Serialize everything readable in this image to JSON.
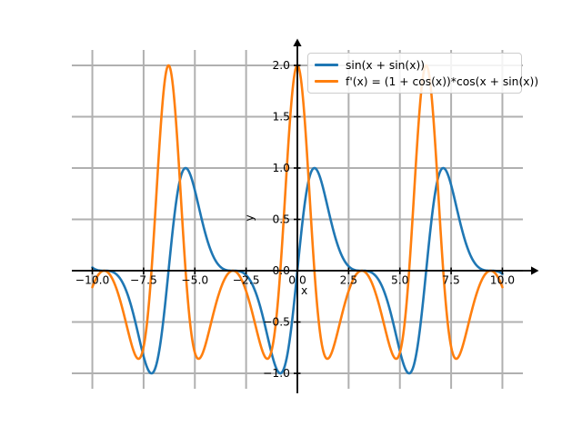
{
  "figure": {
    "background": "#ffffff"
  },
  "chart_data": {
    "type": "line",
    "title": "",
    "xlabel": "x",
    "ylabel": "y",
    "xlim": [
      -11,
      11
    ],
    "ylim": [
      -1.15,
      2.15
    ],
    "x_range": [
      -10,
      10
    ],
    "num_points": 600,
    "grid": true,
    "grid_color": "#b0b0b0",
    "axis_color": "#000000",
    "tick_label_color": "#000000",
    "x_ticks": [
      {
        "v": -10,
        "label": "−10.0"
      },
      {
        "v": -7.5,
        "label": "−7.5"
      },
      {
        "v": -5,
        "label": "−5.0"
      },
      {
        "v": -2.5,
        "label": "−2.5"
      },
      {
        "v": 0,
        "label": "0.0"
      },
      {
        "v": 2.5,
        "label": "2.5"
      },
      {
        "v": 5,
        "label": "5.0"
      },
      {
        "v": 7.5,
        "label": "7.5"
      },
      {
        "v": 10,
        "label": "10.0"
      }
    ],
    "y_ticks": [
      {
        "v": -1,
        "label": "−1.0"
      },
      {
        "v": -0.5,
        "label": "−0.5"
      },
      {
        "v": 0,
        "label": "0.0"
      },
      {
        "v": 0.5,
        "label": "0.5"
      },
      {
        "v": 1,
        "label": "1.0"
      },
      {
        "v": 1.5,
        "label": "1.5"
      },
      {
        "v": 2,
        "label": "2.0"
      }
    ],
    "legend": {
      "position": "upper right",
      "border_color": "#cccccc",
      "background": "rgba(255,255,255,0.85)"
    },
    "series": [
      {
        "label": "sin(x + sin(x))",
        "color": "#1f77b4",
        "formula_js": "Math.sin(x + Math.sin(x))"
      },
      {
        "label": "f'(x) = (1 + cos(x))*cos(x + sin(x))",
        "color": "#ff7f0e",
        "formula_js": "(1 + Math.cos(x)) * Math.cos(x + Math.sin(x))"
      }
    ]
  }
}
